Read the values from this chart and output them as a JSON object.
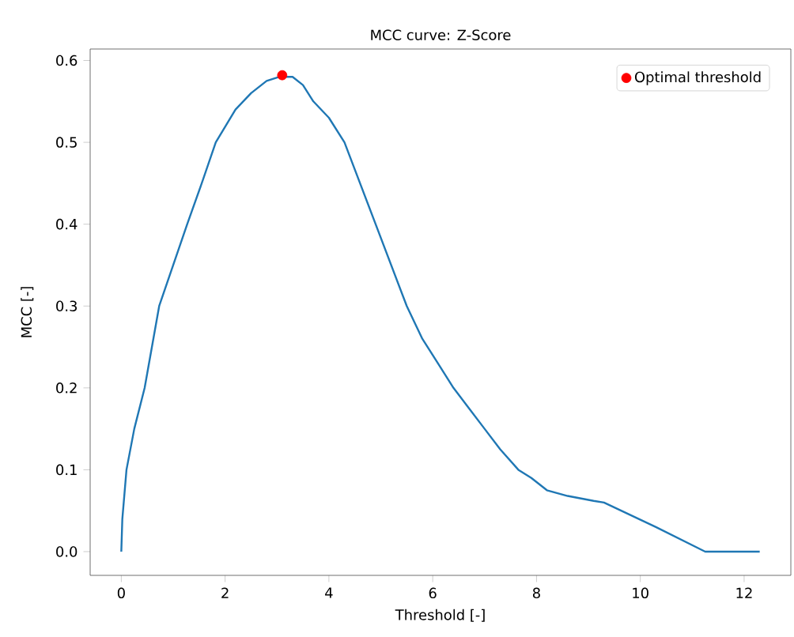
{
  "chart_data": {
    "type": "line",
    "title": "MCC curve: Z-Score",
    "xlabel": "Threshold [-]",
    "ylabel": "MCC [-]",
    "xlim": [
      -0.6,
      12.9
    ],
    "ylim": [
      -0.029,
      0.614
    ],
    "xticks": [
      0,
      2,
      4,
      6,
      8,
      10,
      12
    ],
    "yticks": [
      {
        "value": 0,
        "label": "0.0"
      },
      0.1,
      0.2,
      0.3,
      0.4,
      0.5,
      0.6
    ],
    "legend": "top right",
    "grid": false,
    "series": [
      {
        "color": "#1f77b4",
        "x": [
          0,
          0.02,
          0.1,
          0.25,
          0.45,
          0.73,
          1.0,
          1.27,
          1.55,
          1.82,
          2.2,
          2.5,
          2.8,
          3.05,
          3.3,
          3.5,
          3.7,
          4.0,
          4.3,
          4.6,
          4.9,
          5.2,
          5.5,
          5.8,
          6.1,
          6.4,
          6.7,
          7.0,
          7.3,
          7.65,
          7.9,
          8.2,
          8.6,
          9.1,
          9.3,
          10.3,
          11.25,
          12.3
        ],
        "values": [
          0,
          0.04,
          0.1,
          0.15,
          0.2,
          0.3,
          0.35,
          0.4,
          0.45,
          0.5,
          0.54,
          0.56,
          0.575,
          0.58,
          0.58,
          0.57,
          0.55,
          0.53,
          0.5,
          0.45,
          0.4,
          0.35,
          0.3,
          0.26,
          0.23,
          0.2,
          0.175,
          0.15,
          0.125,
          0.1,
          0.09,
          0.075,
          0.068,
          0.062,
          0.06,
          0.03,
          0,
          0
        ]
      },
      {
        "type": "scatter",
        "name": "Optimal threshold",
        "color": "#ff0000",
        "marker": "circle",
        "x": [
          3.1
        ],
        "values": [
          0.582
        ]
      }
    ]
  }
}
